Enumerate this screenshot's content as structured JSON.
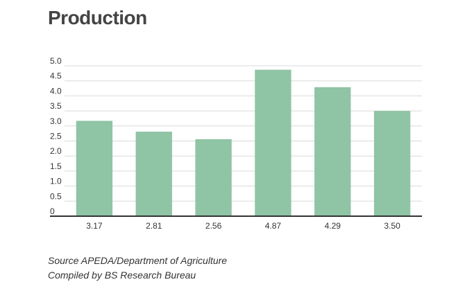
{
  "chart_data": {
    "type": "bar",
    "title": "Production",
    "categories": [
      "3.17",
      "2.81",
      "2.56",
      "4.87",
      "4.29",
      "3.50"
    ],
    "values": [
      3.17,
      2.81,
      2.56,
      4.87,
      4.29,
      3.5
    ],
    "ylim": [
      0,
      5.0
    ],
    "yticks": [
      "0",
      "0.5",
      "1.0",
      "1.5",
      "2.0",
      "2.5",
      "3.0",
      "3.5",
      "4.0",
      "4.5",
      "5.0"
    ],
    "grid": true,
    "bar_color": "#8fc4a4"
  },
  "footer": {
    "source": "Source APEDA/Department of Agriculture",
    "compiled": "Compiled by BS Research Bureau"
  }
}
